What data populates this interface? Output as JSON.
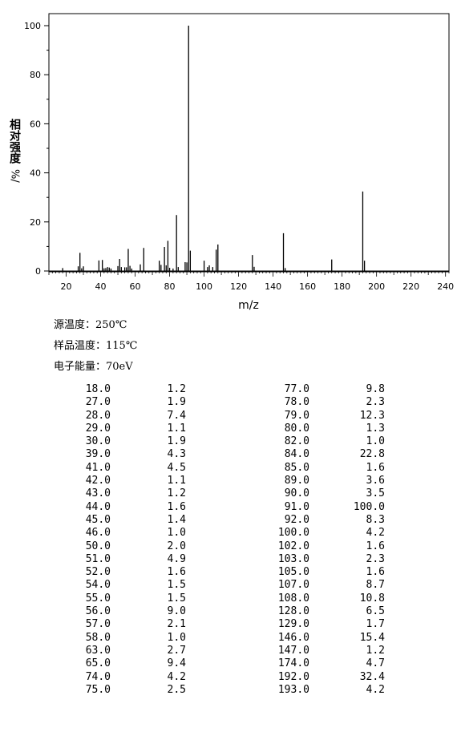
{
  "chart_data": {
    "type": "bar",
    "title": "",
    "xlabel": "m/z",
    "ylabel": "相对强度 %",
    "ylabel_main": "相对强度",
    "ylabel_unit": "%/",
    "xlim": [
      10,
      242
    ],
    "ylim": [
      0,
      105
    ],
    "xticks": [
      20,
      40,
      60,
      80,
      100,
      120,
      140,
      160,
      180,
      200,
      220,
      240
    ],
    "yticks": [
      0,
      20,
      40,
      60,
      80,
      100
    ],
    "x": [
      18,
      27,
      28,
      29,
      30,
      39,
      41,
      42,
      43,
      44,
      45,
      46,
      50,
      51,
      52,
      54,
      55,
      56,
      57,
      58,
      63,
      65,
      74,
      75,
      77,
      78,
      79,
      80,
      82,
      84,
      85,
      89,
      90,
      91,
      92,
      100,
      102,
      103,
      105,
      107,
      108,
      128,
      129,
      146,
      147,
      174,
      192,
      193
    ],
    "values": [
      1.2,
      1.9,
      7.4,
      1.1,
      1.9,
      4.3,
      4.5,
      1.1,
      1.2,
      1.6,
      1.4,
      1.0,
      2.0,
      4.9,
      1.6,
      1.5,
      1.5,
      9.0,
      2.1,
      1.0,
      2.7,
      9.4,
      4.2,
      2.5,
      9.8,
      2.3,
      12.3,
      1.3,
      1.0,
      22.8,
      1.6,
      3.6,
      3.5,
      100.0,
      8.3,
      4.2,
      1.6,
      2.3,
      1.6,
      8.7,
      10.8,
      6.5,
      1.7,
      15.4,
      1.2,
      4.7,
      32.4,
      4.2
    ],
    "grid": false
  },
  "conditions": [
    {
      "label": "源温度：",
      "value": "250℃"
    },
    {
      "label": "样品温度：",
      "value": "115℃"
    },
    {
      "label": "电子能量：",
      "value": "70eV"
    }
  ],
  "peak_table": [
    [
      "18.0",
      "1.2",
      "77.0",
      "9.8"
    ],
    [
      "27.0",
      "1.9",
      "78.0",
      "2.3"
    ],
    [
      "28.0",
      "7.4",
      "79.0",
      "12.3"
    ],
    [
      "29.0",
      "1.1",
      "80.0",
      "1.3"
    ],
    [
      "30.0",
      "1.9",
      "82.0",
      "1.0"
    ],
    [
      "39.0",
      "4.3",
      "84.0",
      "22.8"
    ],
    [
      "41.0",
      "4.5",
      "85.0",
      "1.6"
    ],
    [
      "42.0",
      "1.1",
      "89.0",
      "3.6"
    ],
    [
      "43.0",
      "1.2",
      "90.0",
      "3.5"
    ],
    [
      "44.0",
      "1.6",
      "91.0",
      "100.0"
    ],
    [
      "45.0",
      "1.4",
      "92.0",
      "8.3"
    ],
    [
      "46.0",
      "1.0",
      "100.0",
      "4.2"
    ],
    [
      "50.0",
      "2.0",
      "102.0",
      "1.6"
    ],
    [
      "51.0",
      "4.9",
      "103.0",
      "2.3"
    ],
    [
      "52.0",
      "1.6",
      "105.0",
      "1.6"
    ],
    [
      "54.0",
      "1.5",
      "107.0",
      "8.7"
    ],
    [
      "55.0",
      "1.5",
      "108.0",
      "10.8"
    ],
    [
      "56.0",
      "9.0",
      "128.0",
      "6.5"
    ],
    [
      "57.0",
      "2.1",
      "129.0",
      "1.7"
    ],
    [
      "58.0",
      "1.0",
      "146.0",
      "15.4"
    ],
    [
      "63.0",
      "2.7",
      "147.0",
      "1.2"
    ],
    [
      "65.0",
      "9.4",
      "174.0",
      "4.7"
    ],
    [
      "74.0",
      "4.2",
      "192.0",
      "32.4"
    ],
    [
      "75.0",
      "2.5",
      "193.0",
      "4.2"
    ]
  ]
}
